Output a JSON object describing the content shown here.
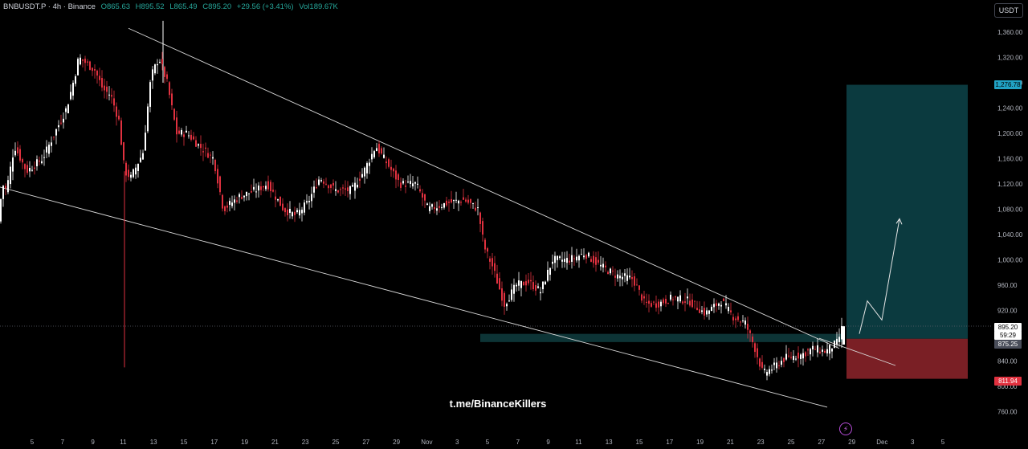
{
  "header": {
    "symbol": "BNBUSDT.P · 4h · Binance",
    "open": "O865.63",
    "high": "H895.52",
    "low": "L865.49",
    "close": "C895.20",
    "change": "+29.56 (+3.41%)",
    "volume": "Vol189.67K"
  },
  "currency_button": "USDT",
  "watermark": "t.me/BinanceKillers",
  "price_labels": {
    "target": "1,276.78",
    "current": "895.20",
    "countdown": "59:29",
    "entry": "875.25",
    "stop": "811.94"
  },
  "colors": {
    "background": "#000000",
    "up_candle": "#ffffff",
    "down_candle": "#e0313f",
    "target_zone": "#0b3a3f",
    "stop_zone": "#7a1f25",
    "demand_zone": "#0e3a3c",
    "target_label": "#21a2c4",
    "stop_label": "#e0313f",
    "entry_label": "#4a4e5a",
    "current_label": "#ffffff"
  },
  "chart_data": {
    "type": "candlestick",
    "y_axis": {
      "min": 740,
      "max": 1380,
      "ticks": [
        "1,360.00",
        "1,320.00",
        "1,280.00",
        "1,240.00",
        "1,200.00",
        "1,160.00",
        "1,120.00",
        "1,080.00",
        "1,040.00",
        "1,000.00",
        "960.00",
        "920.00",
        "880.00",
        "840.00",
        "800.00",
        "760.00"
      ],
      "tick_values": [
        1360,
        1320,
        1280,
        1240,
        1200,
        1160,
        1120,
        1080,
        1040,
        1000,
        960,
        920,
        880,
        840,
        800,
        760
      ]
    },
    "x_axis": {
      "labels": [
        "5",
        "7",
        "9",
        "11",
        "13",
        "15",
        "17",
        "19",
        "21",
        "23",
        "25",
        "27",
        "29",
        "Nov",
        "3",
        "5",
        "7",
        "9",
        "11",
        "13",
        "15",
        "17",
        "19",
        "21",
        "23",
        "25",
        "27",
        "29",
        "Dec",
        "3",
        "5"
      ]
    },
    "key_points": [
      {
        "x": 0,
        "y": 1060
      },
      {
        "x": 5,
        "y": 1120
      },
      {
        "x": 10,
        "y": 1110
      },
      {
        "x": 20,
        "y": 1180
      },
      {
        "x": 35,
        "y": 1140
      },
      {
        "x": 55,
        "y": 1160
      },
      {
        "x": 70,
        "y": 1200
      },
      {
        "x": 85,
        "y": 1240
      },
      {
        "x": 95,
        "y": 1290
      },
      {
        "x": 100,
        "y": 1320
      },
      {
        "x": 110,
        "y": 1310
      },
      {
        "x": 120,
        "y": 1300
      },
      {
        "x": 130,
        "y": 1270
      },
      {
        "x": 140,
        "y": 1260
      },
      {
        "x": 150,
        "y": 1220
      },
      {
        "x": 157,
        "y": 1140
      },
      {
        "x": 165,
        "y": 1130
      },
      {
        "x": 180,
        "y": 1170
      },
      {
        "x": 190,
        "y": 1290
      },
      {
        "x": 200,
        "y": 1320
      },
      {
        "x": 210,
        "y": 1280
      },
      {
        "x": 222,
        "y": 1200
      },
      {
        "x": 235,
        "y": 1200
      },
      {
        "x": 250,
        "y": 1180
      },
      {
        "x": 268,
        "y": 1160
      },
      {
        "x": 280,
        "y": 1080
      },
      {
        "x": 300,
        "y": 1100
      },
      {
        "x": 320,
        "y": 1110
      },
      {
        "x": 335,
        "y": 1120
      },
      {
        "x": 355,
        "y": 1080
      },
      {
        "x": 370,
        "y": 1070
      },
      {
        "x": 385,
        "y": 1090
      },
      {
        "x": 400,
        "y": 1130
      },
      {
        "x": 420,
        "y": 1110
      },
      {
        "x": 440,
        "y": 1110
      },
      {
        "x": 455,
        "y": 1140
      },
      {
        "x": 470,
        "y": 1180
      },
      {
        "x": 485,
        "y": 1150
      },
      {
        "x": 500,
        "y": 1120
      },
      {
        "x": 520,
        "y": 1120
      },
      {
        "x": 535,
        "y": 1080
      },
      {
        "x": 560,
        "y": 1090
      },
      {
        "x": 580,
        "y": 1095
      },
      {
        "x": 597,
        "y": 1080
      },
      {
        "x": 605,
        "y": 1020
      },
      {
        "x": 615,
        "y": 990
      },
      {
        "x": 630,
        "y": 930
      },
      {
        "x": 645,
        "y": 960
      },
      {
        "x": 660,
        "y": 965
      },
      {
        "x": 675,
        "y": 950
      },
      {
        "x": 690,
        "y": 1000
      },
      {
        "x": 710,
        "y": 1000
      },
      {
        "x": 730,
        "y": 1010
      },
      {
        "x": 750,
        "y": 990
      },
      {
        "x": 770,
        "y": 975
      },
      {
        "x": 790,
        "y": 970
      },
      {
        "x": 805,
        "y": 930
      },
      {
        "x": 820,
        "y": 930
      },
      {
        "x": 840,
        "y": 940
      },
      {
        "x": 860,
        "y": 935
      },
      {
        "x": 880,
        "y": 915
      },
      {
        "x": 900,
        "y": 935
      },
      {
        "x": 915,
        "y": 910
      },
      {
        "x": 930,
        "y": 900
      },
      {
        "x": 942,
        "y": 860
      },
      {
        "x": 952,
        "y": 820
      },
      {
        "x": 965,
        "y": 830
      },
      {
        "x": 980,
        "y": 845
      },
      {
        "x": 1000,
        "y": 850
      },
      {
        "x": 1015,
        "y": 860
      },
      {
        "x": 1030,
        "y": 855
      },
      {
        "x": 1045,
        "y": 870
      },
      {
        "x": 1051,
        "y": 895
      }
    ],
    "spike_wicks": [
      {
        "x": 155,
        "low": 830,
        "high": 1140
      },
      {
        "x": 203,
        "low": 1280,
        "high": 1378
      }
    ],
    "trendlines": [
      {
        "name": "upper",
        "x1": 160,
        "y1": 1366,
        "x2": 1045,
        "y2": 860
      },
      {
        "name": "lower",
        "x1": 0,
        "y1": 1115,
        "x2": 1030,
        "y2": 767
      },
      {
        "name": "lower-right",
        "x1": 1020,
        "y1": 876,
        "x2": 1115,
        "y2": 833
      }
    ],
    "zones": [
      {
        "name": "demand",
        "x1": 598,
        "x2": 1050,
        "y_top": 883,
        "y_bottom": 870
      },
      {
        "name": "target",
        "x1": 1054,
        "x2": 1205,
        "y_top": 1276.78,
        "y_bottom": 875.25
      },
      {
        "name": "stop",
        "x1": 1054,
        "x2": 1205,
        "y_top": 875.25,
        "y_bottom": 811.94
      }
    ],
    "projection": [
      {
        "x": 1070,
        "y": 883
      },
      {
        "x": 1080,
        "y": 935
      },
      {
        "x": 1098,
        "y": 905
      },
      {
        "x": 1120,
        "y": 1065
      }
    ],
    "current_price": 895.2,
    "entry_price": 875.25,
    "stop_price": 811.94,
    "target_price": 1276.78
  }
}
